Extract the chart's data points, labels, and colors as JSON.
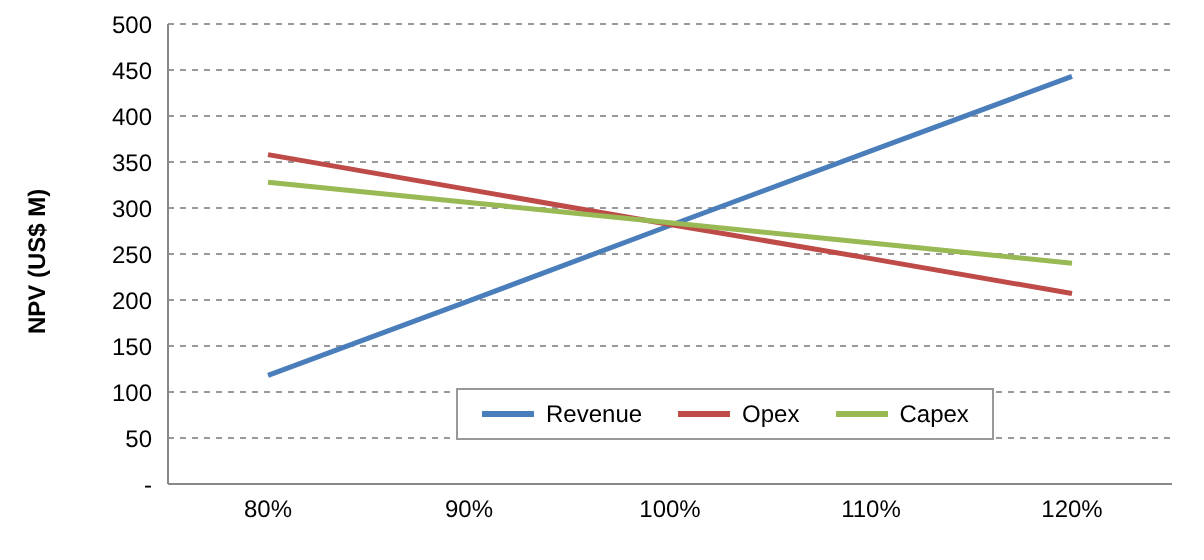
{
  "chart_data": {
    "type": "line",
    "ylabel": "NPV (US$ M)",
    "categories": [
      "80%",
      "90%",
      "100%",
      "110%",
      "120%"
    ],
    "series": [
      {
        "name": "Revenue",
        "color": "#4a7ebb",
        "values": [
          118,
          199,
          281,
          362,
          443
        ]
      },
      {
        "name": "Opex",
        "color": "#be4b48",
        "values": [
          358,
          320,
          282,
          245,
          207
        ]
      },
      {
        "name": "Capex",
        "color": "#98b954",
        "values": [
          328,
          306,
          284,
          262,
          240
        ]
      }
    ],
    "ylim": [
      0,
      500
    ],
    "yticks": [
      {
        "value": 0,
        "label": "-"
      },
      50,
      100,
      150,
      200,
      250,
      300,
      350,
      400,
      450,
      500
    ],
    "grid": "y",
    "legend": "bottom",
    "marker": "none",
    "line_style": "solid"
  }
}
